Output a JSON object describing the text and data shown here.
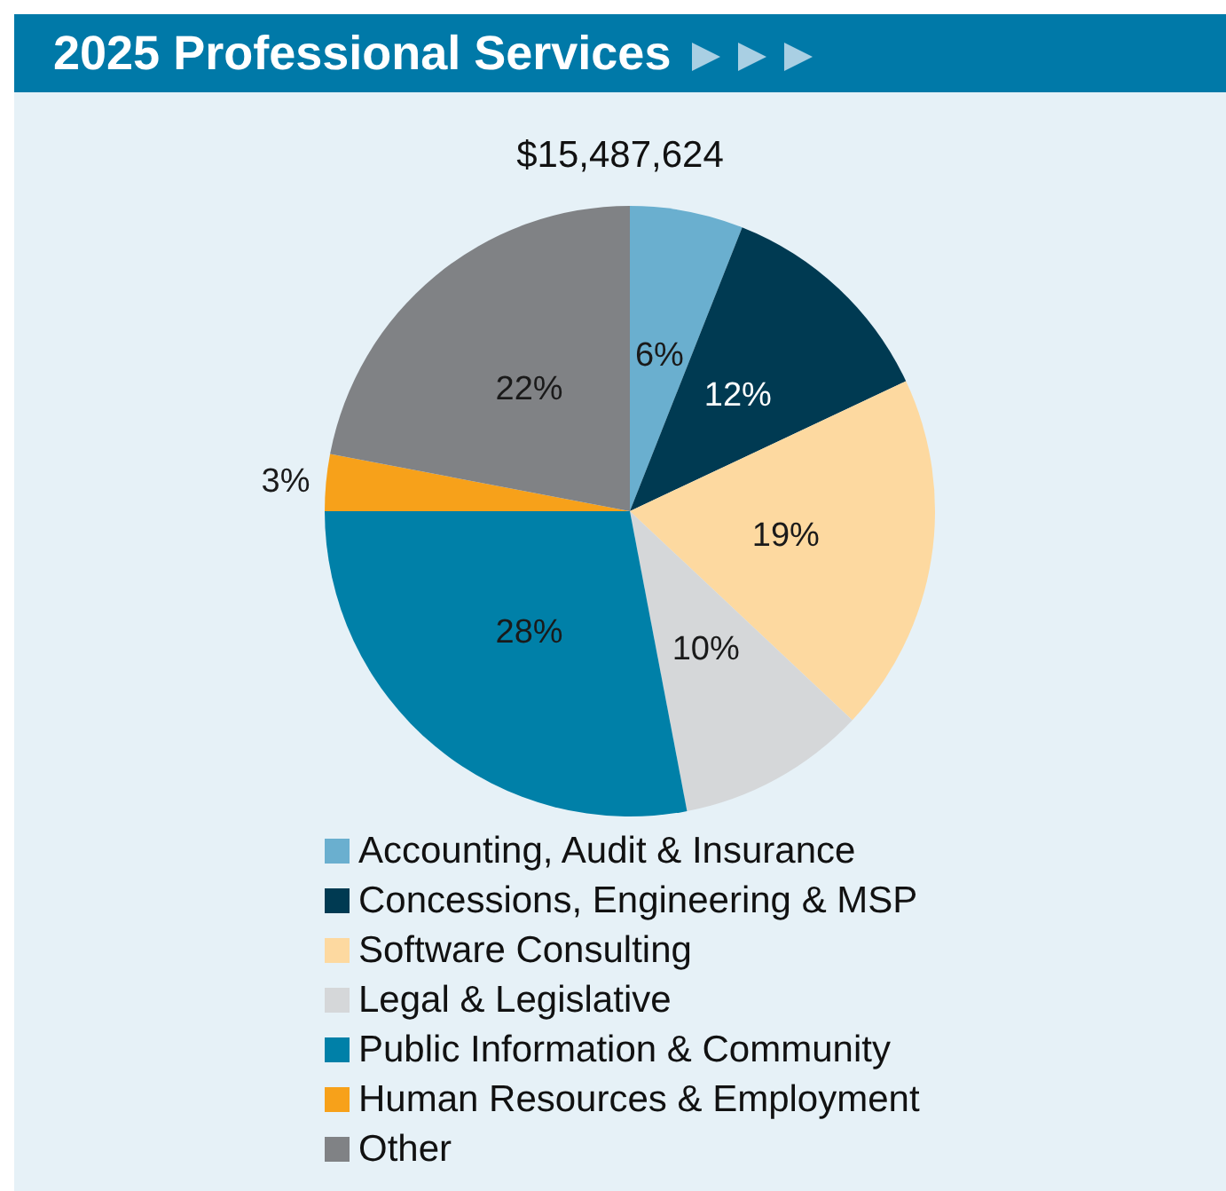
{
  "chart_data": {
    "type": "pie",
    "title": "2025 Professional Services",
    "subtitle": "$15,487,624",
    "categories": [
      "Accounting, Audit & Insurance",
      "Concessions, Engineering & MSP",
      "Software Consulting",
      "Legal & Legislative",
      "Public Information & Community",
      "Human Resources & Employment",
      "Other"
    ],
    "values": [
      6,
      12,
      19,
      10,
      28,
      3,
      22
    ],
    "value_labels": [
      "6%",
      "12%",
      "19%",
      "10%",
      "28%",
      "3%",
      "22%"
    ],
    "colors": [
      "#6aafcf",
      "#003a52",
      "#fdd9a0",
      "#d5d7d9",
      "#0080a8",
      "#f7a11a",
      "#808285"
    ],
    "legend": "bottom"
  }
}
